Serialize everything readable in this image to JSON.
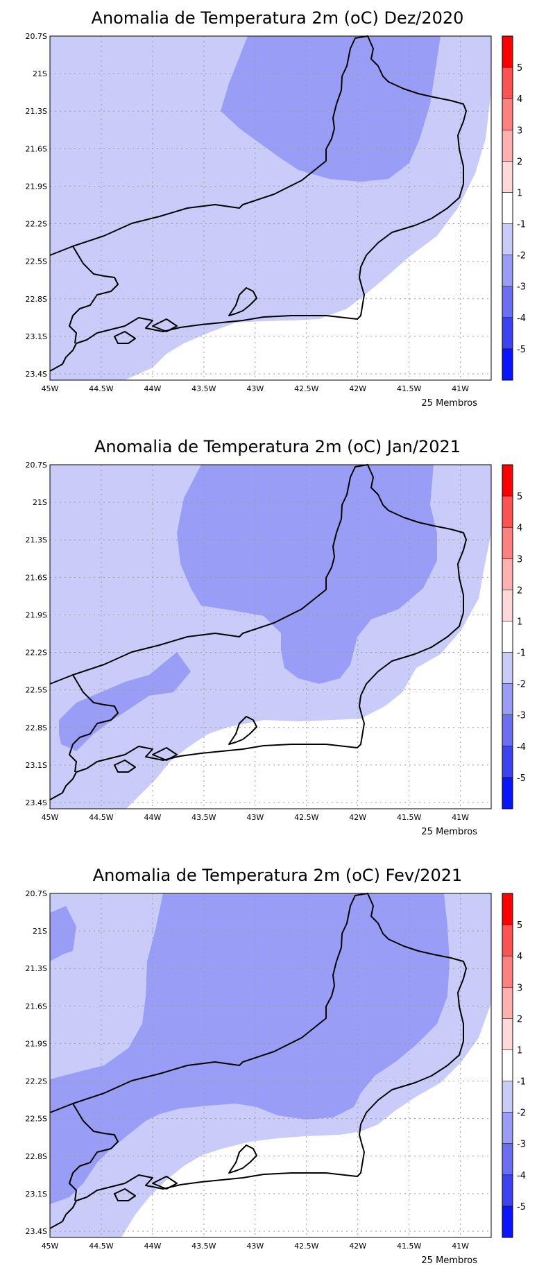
{
  "colors": {
    "anom_m1": "#c9ccf9",
    "anom_m2": "#9a9df6",
    "anom_m3": "#6b6ff4",
    "anom_m4": "#3e43f2",
    "anom_m5": "#0b14ff",
    "neutral": "#ffffff"
  },
  "axes": {
    "lat_labels": [
      "20.7S",
      "21S",
      "21.3S",
      "21.6S",
      "21.9S",
      "22.2S",
      "22.5S",
      "22.8S",
      "23.1S",
      "23.4S"
    ],
    "lon_labels": [
      "45W",
      "44.5W",
      "44W",
      "43.5W",
      "43W",
      "42.5W",
      "42W",
      "41.5W",
      "41W"
    ],
    "lat_range": [
      -23.45,
      -20.7
    ],
    "lon_range": [
      -45.0,
      -40.7
    ]
  },
  "colorbar": {
    "labels": [
      "5",
      "4",
      "3",
      "2",
      "1",
      "-1",
      "-2",
      "-3",
      "-4",
      "-5"
    ],
    "colors": [
      "#ff0000",
      "#ff5252",
      "#ff8080",
      "#ffb0b0",
      "#ffd8d8",
      "#ffffff",
      "#c9ccf9",
      "#9a9df6",
      "#6b6ff4",
      "#3e43f2",
      "#0b14ff"
    ]
  },
  "panels": [
    {
      "title": "Anomalia de Temperatura 2m (oC) Dez/2020",
      "footer": "25 Membros"
    },
    {
      "title": "Anomalia de Temperatura 2m (oC) Jan/2021",
      "footer": "25 Membros"
    },
    {
      "title": "Anomalia de Temperatura 2m (oC) Fev/2021",
      "footer": "25 Membros"
    }
  ]
}
